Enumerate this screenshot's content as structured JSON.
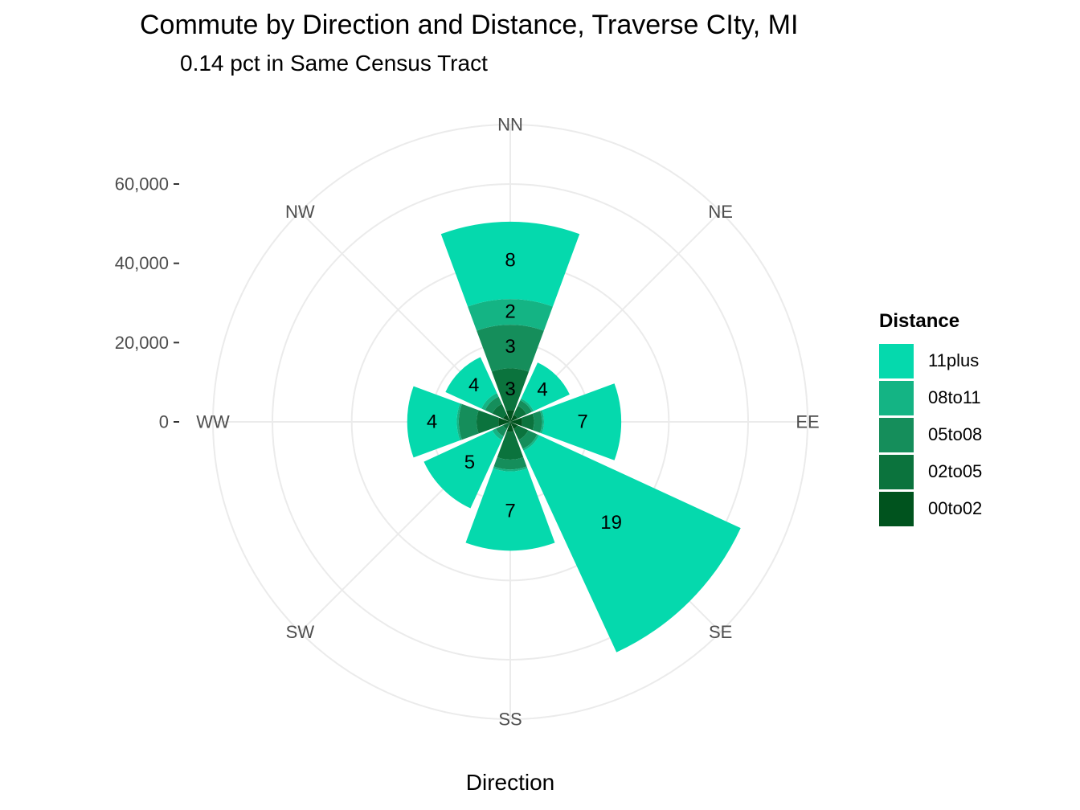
{
  "title": "Commute by Direction and Distance, Traverse CIty, MI",
  "subtitle": "0.14 pct in Same Census Tract",
  "chart_data": {
    "type": "bar",
    "coord": "polar",
    "title": "Commute by Direction and Distance, Traverse CIty, MI",
    "subtitle": "0.14 pct in Same Census Tract",
    "xlabel": "Direction",
    "ylabel": "",
    "ylim": [
      0,
      75000
    ],
    "y_ticks": [
      "0",
      "20,000",
      "40,000",
      "60,000"
    ],
    "y_tick_values": [
      0,
      20000,
      40000,
      60000
    ],
    "categories": [
      "NN",
      "NE",
      "EE",
      "SE",
      "SS",
      "SW",
      "WW",
      "NW"
    ],
    "legend_title": "Distance",
    "legend_position": "right",
    "series": [
      {
        "name": "00to02",
        "color": "#00531E",
        "values": [
          3000,
          2000,
          3000,
          2000,
          2500,
          0,
          3000,
          2000
        ]
      },
      {
        "name": "02to05",
        "color": "#0B733D",
        "values": [
          10500,
          2500,
          3000,
          3000,
          7000,
          2000,
          5500,
          3000
        ]
      },
      {
        "name": "05to08",
        "color": "#158E5B",
        "values": [
          11000,
          1500,
          2000,
          2500,
          2500,
          2000,
          4500,
          2000
        ]
      },
      {
        "name": "08to11",
        "color": "#14B484",
        "values": [
          6500,
          500,
          500,
          500,
          500,
          1000,
          500,
          1000
        ]
      },
      {
        "name": "11plus",
        "color": "#05D9AD",
        "values": [
          19500,
          10000,
          19500,
          56000,
          20000,
          19000,
          12500,
          10000
        ]
      }
    ],
    "bar_labels": [
      {
        "category": "NN",
        "series": "11plus",
        "text": "8"
      },
      {
        "category": "NN",
        "series": "08to11",
        "text": "2"
      },
      {
        "category": "NN",
        "series": "05to08",
        "text": "3"
      },
      {
        "category": "NN",
        "series": "02to05",
        "text": "3"
      },
      {
        "category": "NE",
        "series": "11plus",
        "text": "4"
      },
      {
        "category": "EE",
        "series": "11plus",
        "text": "7"
      },
      {
        "category": "SE",
        "series": "11plus",
        "text": "19"
      },
      {
        "category": "SS",
        "series": "11plus",
        "text": "7"
      },
      {
        "category": "SW",
        "series": "11plus",
        "text": "5"
      },
      {
        "category": "WW",
        "series": "11plus",
        "text": "4"
      },
      {
        "category": "NW",
        "series": "11plus",
        "text": "4"
      }
    ],
    "grid": true
  },
  "legend": {
    "title": "Distance",
    "items": [
      {
        "label": "11plus",
        "color": "#05D9AD"
      },
      {
        "label": "08to11",
        "color": "#14B484"
      },
      {
        "label": "05to08",
        "color": "#158E5B"
      },
      {
        "label": "02to05",
        "color": "#0B733D"
      },
      {
        "label": "00to02",
        "color": "#00531E"
      }
    ]
  }
}
